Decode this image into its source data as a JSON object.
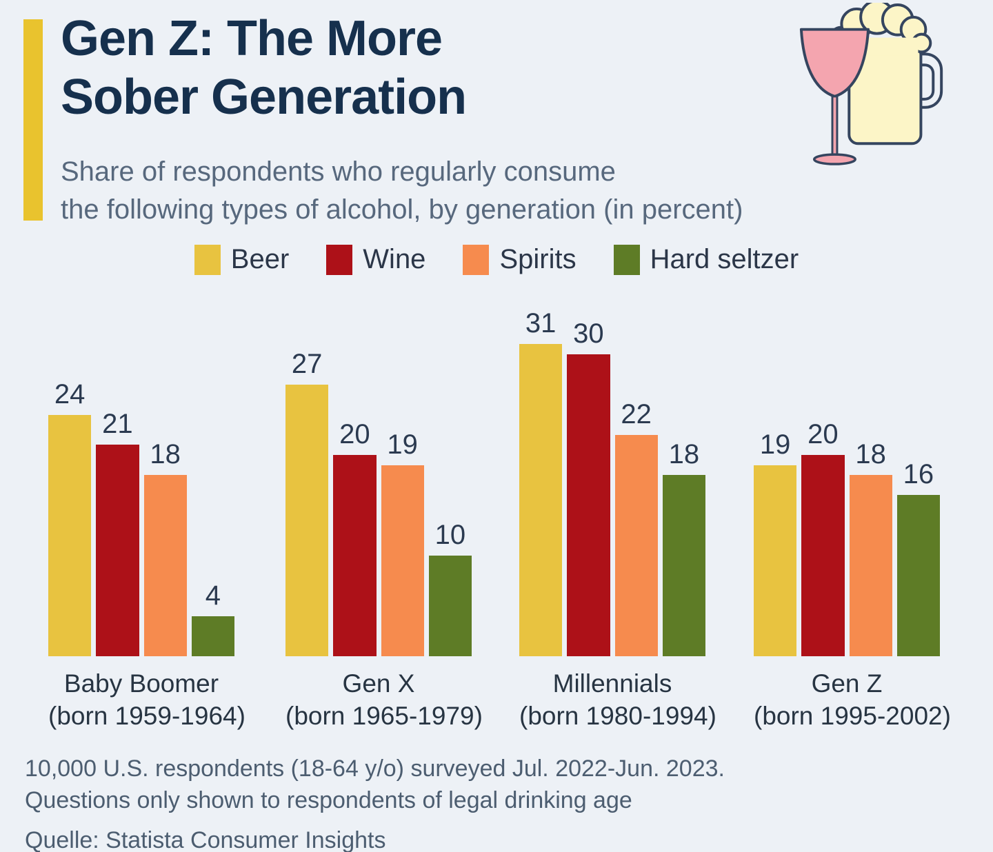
{
  "page": {
    "background": "#edf1f6"
  },
  "header": {
    "accent_color": "#e9c32e",
    "title_line1": "Gen Z: The More",
    "title_line2": "Sober Generation",
    "subtitle_line1": "Share of respondents who regularly consume",
    "subtitle_line2": "the following types of alcohol, by generation (in percent)"
  },
  "legend": [
    {
      "label": "Beer",
      "color": "#e8c340"
    },
    {
      "label": "Wine",
      "color": "#ad1118"
    },
    {
      "label": "Spirits",
      "color": "#f68b4e"
    },
    {
      "label": "Hard seltzer",
      "color": "#5e7c26"
    }
  ],
  "chart_data": {
    "type": "bar",
    "title": "Gen Z: The More Sober Generation",
    "subtitle": "Share of respondents who regularly consume the following types of alcohol, by generation (in percent)",
    "unit": "percent",
    "ylim": [
      0,
      31
    ],
    "grid": false,
    "legend_position": "top",
    "value_labels": true,
    "categories": [
      {
        "name": "Baby Boomer",
        "born": "(born 1959-1964)"
      },
      {
        "name": "Gen X",
        "born": "(born 1965-1979)"
      },
      {
        "name": "Millennials",
        "born": "(born 1980-1994)"
      },
      {
        "name": "Gen Z",
        "born": "(born 1995-2002)"
      }
    ],
    "series": [
      {
        "name": "Beer",
        "color": "#e8c340",
        "values": [
          24,
          27,
          31,
          19
        ]
      },
      {
        "name": "Wine",
        "color": "#ad1118",
        "values": [
          21,
          20,
          30,
          20
        ]
      },
      {
        "name": "Spirits",
        "color": "#f68b4e",
        "values": [
          18,
          19,
          22,
          18
        ]
      },
      {
        "name": "Hard seltzer",
        "color": "#5e7c26",
        "values": [
          4,
          10,
          18,
          16
        ]
      }
    ]
  },
  "footer": {
    "line1": "10,000 U.S. respondents (18-64 y/o) surveyed Jul. 2022-Jun. 2023.",
    "line2": "Questions only shown to respondents of legal drinking age",
    "source": "Quelle: Statista Consumer Insights"
  },
  "icon": {
    "name": "wine-glass-and-beer-mug",
    "wine_fill": "#f4a5af",
    "beer_fill": "#fcf5c7",
    "outline": "#35455f"
  }
}
